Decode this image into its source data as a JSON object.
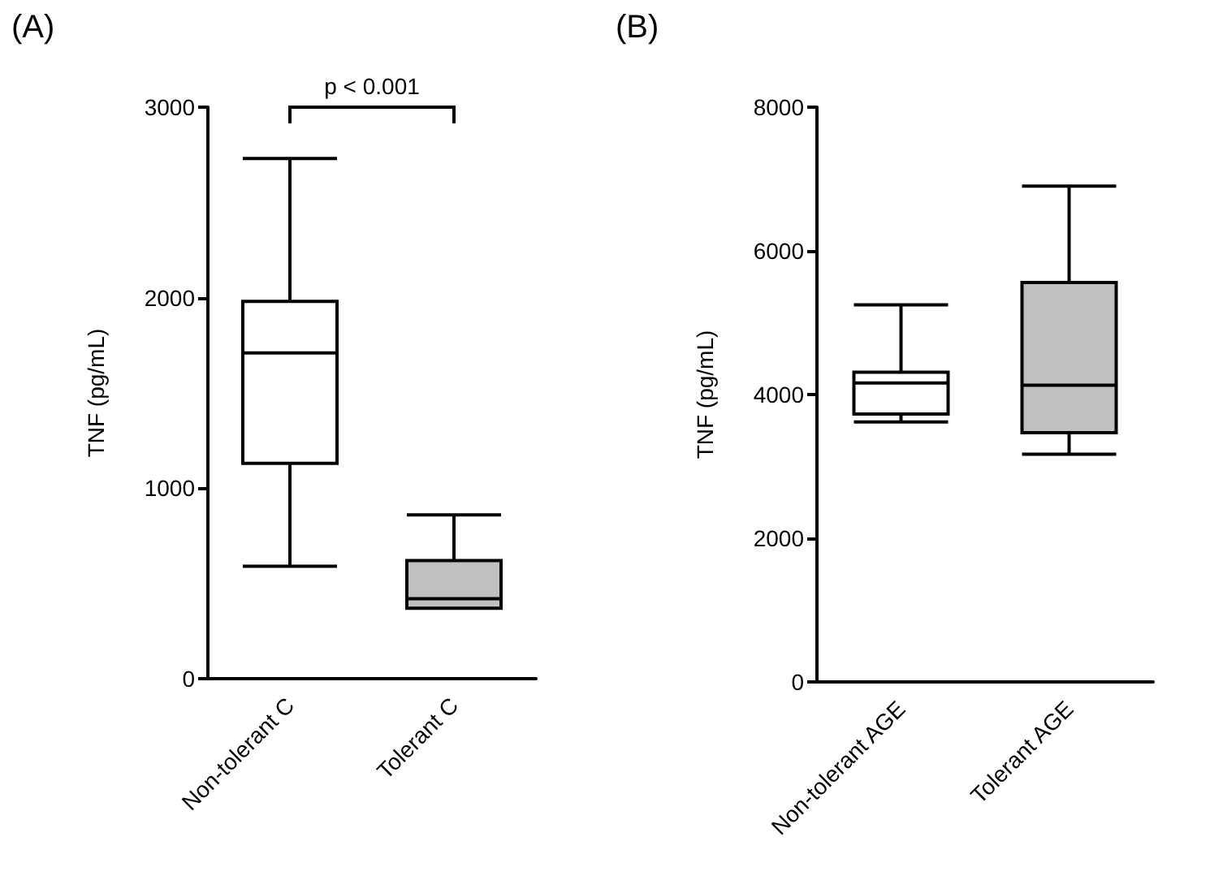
{
  "chart_data": [
    {
      "type": "box",
      "title": "(A)",
      "ylabel": "TNF (pg/mL)",
      "categories": [
        "Non-tolerant C",
        "Tolerant C"
      ],
      "boxes": [
        {
          "low": 590,
          "q1": 1130,
          "median": 1710,
          "q3": 1980,
          "high": 2730
        },
        {
          "low": 370,
          "q1": 370,
          "median": 420,
          "q3": 620,
          "high": 860
        }
      ],
      "colors": [
        "#ffffff",
        "#c0c0c0"
      ],
      "ylim": [
        0,
        3000
      ],
      "yticks": [
        0,
        1000,
        2000,
        3000
      ],
      "grid": false,
      "annotations": [
        "p < 0.001"
      ]
    },
    {
      "type": "box",
      "title": "(B)",
      "ylabel": "TNF (pg/mL)",
      "categories": [
        "Non-tolerant AGE",
        "Tolerant AGE"
      ],
      "boxes": [
        {
          "low": 3620,
          "q1": 3730,
          "median": 4160,
          "q3": 4310,
          "high": 5250
        },
        {
          "low": 3170,
          "q1": 3470,
          "median": 4130,
          "q3": 5560,
          "high": 6900
        }
      ],
      "colors": [
        "#ffffff",
        "#c0c0c0"
      ],
      "ylim": [
        0,
        8000
      ],
      "yticks": [
        0,
        2000,
        4000,
        6000,
        8000
      ],
      "grid": false
    }
  ]
}
